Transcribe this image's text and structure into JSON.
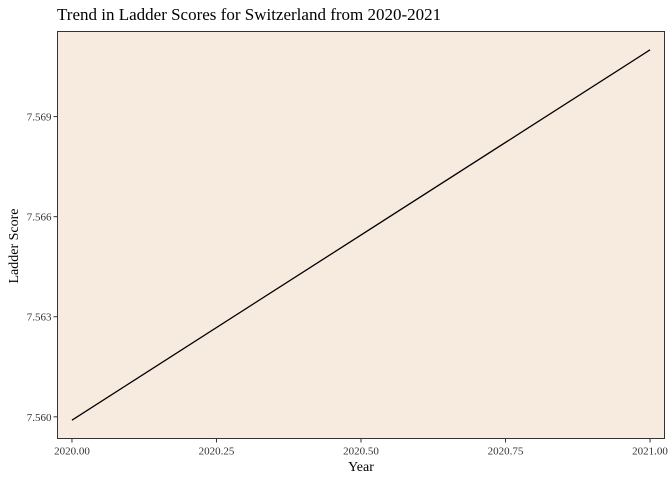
{
  "chart_data": {
    "type": "line",
    "title": "Trend in Ladder Scores for Switzerland from 2020-2021",
    "xlabel": "Year",
    "ylabel": "Ladder Score",
    "x": [
      2020.0,
      2021.0
    ],
    "series": [
      {
        "values": [
          7.5599,
          7.571
        ]
      }
    ],
    "xlim": [
      2019.975,
      2021.025
    ],
    "ylim": [
      7.55935,
      7.57155
    ],
    "xticks": [
      "2020.00",
      "2020.25",
      "2020.50",
      "2020.75",
      "2021.00"
    ],
    "xtick_values": [
      2020.0,
      2020.25,
      2020.5,
      2020.75,
      2021.0
    ],
    "yticks": [
      "7.560",
      "7.563",
      "7.566",
      "7.569"
    ],
    "ytick_values": [
      7.56,
      7.563,
      7.566,
      7.569
    ],
    "grid": false,
    "legend": "none",
    "colors": {
      "panel_background": "#f7ebe0",
      "panel_border": "#333333",
      "line": "#000000"
    }
  }
}
